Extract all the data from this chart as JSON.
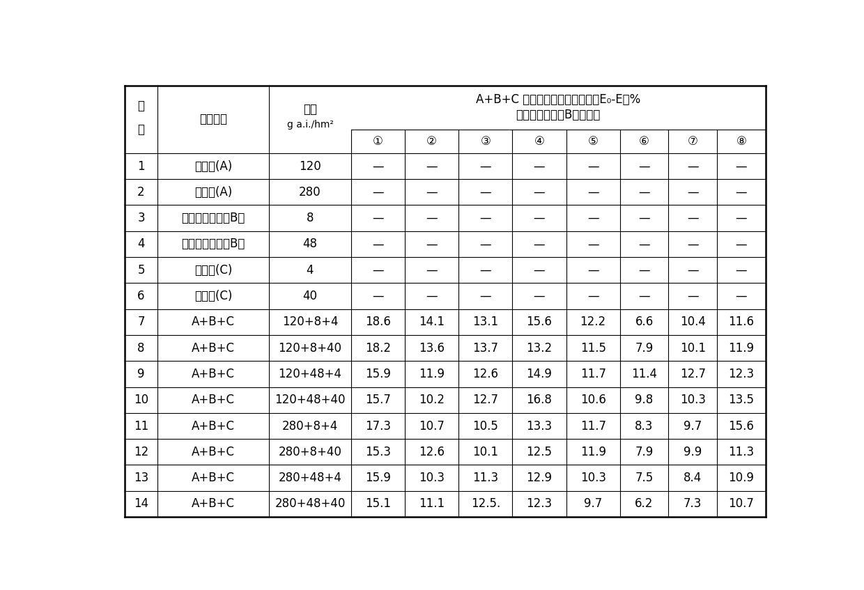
{
  "title_line1": "A+B+C 混剂处理的存活率差值（E₀-E）%",
  "title_line2": "吵啊类除草剂（B）的种类",
  "header_seq": "序\n号",
  "header_name": "药剂名称",
  "header_dose_line1": "剂量",
  "header_dose_line2": "g a.i./hm²",
  "sub_headers": [
    "①",
    "②",
    "③",
    "④",
    "⑤",
    "⑥",
    "⑦",
    "⑧"
  ],
  "rows": [
    {
      "id": "1",
      "name": "草甘膚(A)",
      "dose": "120",
      "vals": [
        "—",
        "—",
        "—",
        "—",
        "—",
        "—",
        "—",
        "—"
      ]
    },
    {
      "id": "2",
      "name": "草甘膚(A)",
      "dose": "280",
      "vals": [
        "—",
        "—",
        "—",
        "—",
        "—",
        "—",
        "—",
        "—"
      ]
    },
    {
      "id": "3",
      "name": "吵啊类除草剂（B）",
      "dose": "8",
      "vals": [
        "—",
        "—",
        "—",
        "—",
        "—",
        "—",
        "—",
        "—"
      ]
    },
    {
      "id": "4",
      "name": "吵啊类除草剂（B）",
      "dose": "48",
      "vals": [
        "—",
        "—",
        "—",
        "—",
        "—",
        "—",
        "—",
        "—"
      ]
    },
    {
      "id": "5",
      "name": "唠草酮(C)",
      "dose": "4",
      "vals": [
        "—",
        "—",
        "—",
        "—",
        "—",
        "—",
        "—",
        "—"
      ]
    },
    {
      "id": "6",
      "name": "唠草酮(C)",
      "dose": "40",
      "vals": [
        "—",
        "—",
        "—",
        "—",
        "—",
        "—",
        "—",
        "—"
      ]
    },
    {
      "id": "7",
      "name": "A+B+C",
      "dose": "120+8+4",
      "vals": [
        "18.6",
        "14.1",
        "13.1",
        "15.6",
        "12.2",
        "6.6",
        "10.4",
        "11.6"
      ]
    },
    {
      "id": "8",
      "name": "A+B+C",
      "dose": "120+8+40",
      "vals": [
        "18.2",
        "13.6",
        "13.7",
        "13.2",
        "11.5",
        "7.9",
        "10.1",
        "11.9"
      ]
    },
    {
      "id": "9",
      "name": "A+B+C",
      "dose": "120+48+4",
      "vals": [
        "15.9",
        "11.9",
        "12.6",
        "14.9",
        "11.7",
        "11.4",
        "12.7",
        "12.3"
      ]
    },
    {
      "id": "10",
      "name": "A+B+C",
      "dose": "120+48+40",
      "vals": [
        "15.7",
        "10.2",
        "12.7",
        "16.8",
        "10.6",
        "9.8",
        "10.3",
        "13.5"
      ]
    },
    {
      "id": "11",
      "name": "A+B+C",
      "dose": "280+8+4",
      "vals": [
        "17.3",
        "10.7",
        "10.5",
        "13.3",
        "11.7",
        "8.3",
        "9.7",
        "15.6"
      ]
    },
    {
      "id": "12",
      "name": "A+B+C",
      "dose": "280+8+40",
      "vals": [
        "15.3",
        "12.6",
        "10.1",
        "12.5",
        "11.9",
        "7.9",
        "9.9",
        "11.3"
      ]
    },
    {
      "id": "13",
      "name": "A+B+C",
      "dose": "280+48+4",
      "vals": [
        "15.9",
        "10.3",
        "11.3",
        "12.9",
        "10.3",
        "7.5",
        "8.4",
        "10.9"
      ]
    },
    {
      "id": "14",
      "name": "A+B+C",
      "dose": "280+48+40",
      "vals": [
        "15.1",
        "11.1",
        "12.5.",
        "12.3",
        "9.7",
        "6.2",
        "7.3",
        "10.7"
      ]
    }
  ],
  "bg_color": "#ffffff",
  "text_color": "#000000"
}
